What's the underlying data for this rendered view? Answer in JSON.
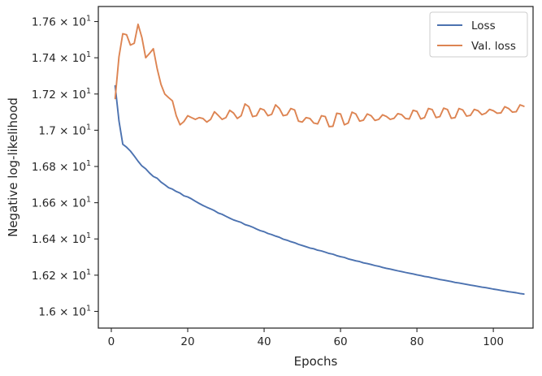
{
  "chart_data": {
    "type": "line",
    "xlabel": "Epochs",
    "ylabel": "Negative log-likelihood",
    "xlim": [
      -3.4,
      110.4
    ],
    "ylim": [
      15.908,
      17.683
    ],
    "x_ticks": [
      0,
      20,
      40,
      60,
      80,
      100
    ],
    "y_ticks": [
      16.0,
      16.2,
      16.4,
      16.6,
      16.8,
      17.0,
      17.2,
      17.4,
      17.6
    ],
    "y_tick_labels": [
      {
        "mant": "1.6",
        "exp": "1"
      },
      {
        "mant": "1.62",
        "exp": "1"
      },
      {
        "mant": "1.64",
        "exp": "1"
      },
      {
        "mant": "1.66",
        "exp": "1"
      },
      {
        "mant": "1.68",
        "exp": "1"
      },
      {
        "mant": "1.7",
        "exp": "1"
      },
      {
        "mant": "1.72",
        "exp": "1"
      },
      {
        "mant": "1.74",
        "exp": "1"
      },
      {
        "mant": "1.76",
        "exp": "1"
      }
    ],
    "y_tick_times": "×",
    "y_tick_base": "10",
    "legend_position": "top-right",
    "grid": false,
    "x": [
      1,
      2,
      3,
      4,
      5,
      6,
      7,
      8,
      9,
      10,
      11,
      12,
      13,
      14,
      15,
      16,
      17,
      18,
      19,
      20,
      21,
      22,
      23,
      24,
      25,
      26,
      27,
      28,
      29,
      30,
      31,
      32,
      33,
      34,
      35,
      36,
      37,
      38,
      39,
      40,
      41,
      42,
      43,
      44,
      45,
      46,
      47,
      48,
      49,
      50,
      51,
      52,
      53,
      54,
      55,
      56,
      57,
      58,
      59,
      60,
      61,
      62,
      63,
      64,
      65,
      66,
      67,
      68,
      69,
      70,
      71,
      72,
      73,
      74,
      75,
      76,
      77,
      78,
      79,
      80,
      81,
      82,
      83,
      84,
      85,
      86,
      87,
      88,
      89,
      90,
      91,
      92,
      93,
      94,
      95,
      96,
      97,
      98,
      99,
      100,
      101,
      102,
      103,
      104,
      105,
      106,
      107,
      108
    ],
    "series": [
      {
        "name": "Loss",
        "color": "#4c72b0",
        "values": [
          17.245,
          17.052,
          16.923,
          16.906,
          16.885,
          16.858,
          16.829,
          16.803,
          16.787,
          16.764,
          16.745,
          16.735,
          16.714,
          16.699,
          16.683,
          16.675,
          16.662,
          16.653,
          16.638,
          16.632,
          16.621,
          16.608,
          16.596,
          16.585,
          16.575,
          16.566,
          16.556,
          16.543,
          16.536,
          16.525,
          16.515,
          16.505,
          16.498,
          16.491,
          16.479,
          16.473,
          16.465,
          16.455,
          16.446,
          16.44,
          16.43,
          16.424,
          16.416,
          16.409,
          16.399,
          16.393,
          16.385,
          16.379,
          16.37,
          16.364,
          16.357,
          16.35,
          16.346,
          16.338,
          16.334,
          16.327,
          16.32,
          16.316,
          16.308,
          16.302,
          16.298,
          16.29,
          16.285,
          16.279,
          16.275,
          16.268,
          16.264,
          16.259,
          16.253,
          16.249,
          16.243,
          16.238,
          16.234,
          16.229,
          16.224,
          16.22,
          16.215,
          16.211,
          16.207,
          16.202,
          16.198,
          16.193,
          16.19,
          16.185,
          16.181,
          16.176,
          16.173,
          16.169,
          16.165,
          16.16,
          16.157,
          16.153,
          16.149,
          16.145,
          16.142,
          16.138,
          16.134,
          16.131,
          16.127,
          16.123,
          16.12,
          16.116,
          16.113,
          16.109,
          16.106,
          16.103,
          16.099,
          16.096
        ]
      },
      {
        "name": "Val. loss",
        "color": "#dd8452",
        "values": [
          17.175,
          17.405,
          17.533,
          17.527,
          17.47,
          17.48,
          17.585,
          17.512,
          17.4,
          17.424,
          17.45,
          17.34,
          17.253,
          17.2,
          17.18,
          17.162,
          17.08,
          17.03,
          17.048,
          17.08,
          17.07,
          17.06,
          17.07,
          17.065,
          17.045,
          17.06,
          17.102,
          17.082,
          17.06,
          17.07,
          17.11,
          17.095,
          17.065,
          17.08,
          17.145,
          17.13,
          17.075,
          17.08,
          17.12,
          17.112,
          17.08,
          17.088,
          17.14,
          17.12,
          17.08,
          17.085,
          17.12,
          17.112,
          17.05,
          17.045,
          17.07,
          17.065,
          17.04,
          17.035,
          17.08,
          17.075,
          17.02,
          17.022,
          17.094,
          17.09,
          17.03,
          17.04,
          17.1,
          17.09,
          17.05,
          17.056,
          17.09,
          17.08,
          17.054,
          17.06,
          17.085,
          17.076,
          17.06,
          17.066,
          17.092,
          17.086,
          17.065,
          17.062,
          17.11,
          17.104,
          17.062,
          17.07,
          17.12,
          17.114,
          17.07,
          17.075,
          17.122,
          17.114,
          17.066,
          17.07,
          17.12,
          17.112,
          17.078,
          17.082,
          17.115,
          17.108,
          17.086,
          17.094,
          17.115,
          17.108,
          17.094,
          17.096,
          17.13,
          17.12,
          17.1,
          17.102,
          17.14,
          17.132
        ]
      }
    ]
  }
}
